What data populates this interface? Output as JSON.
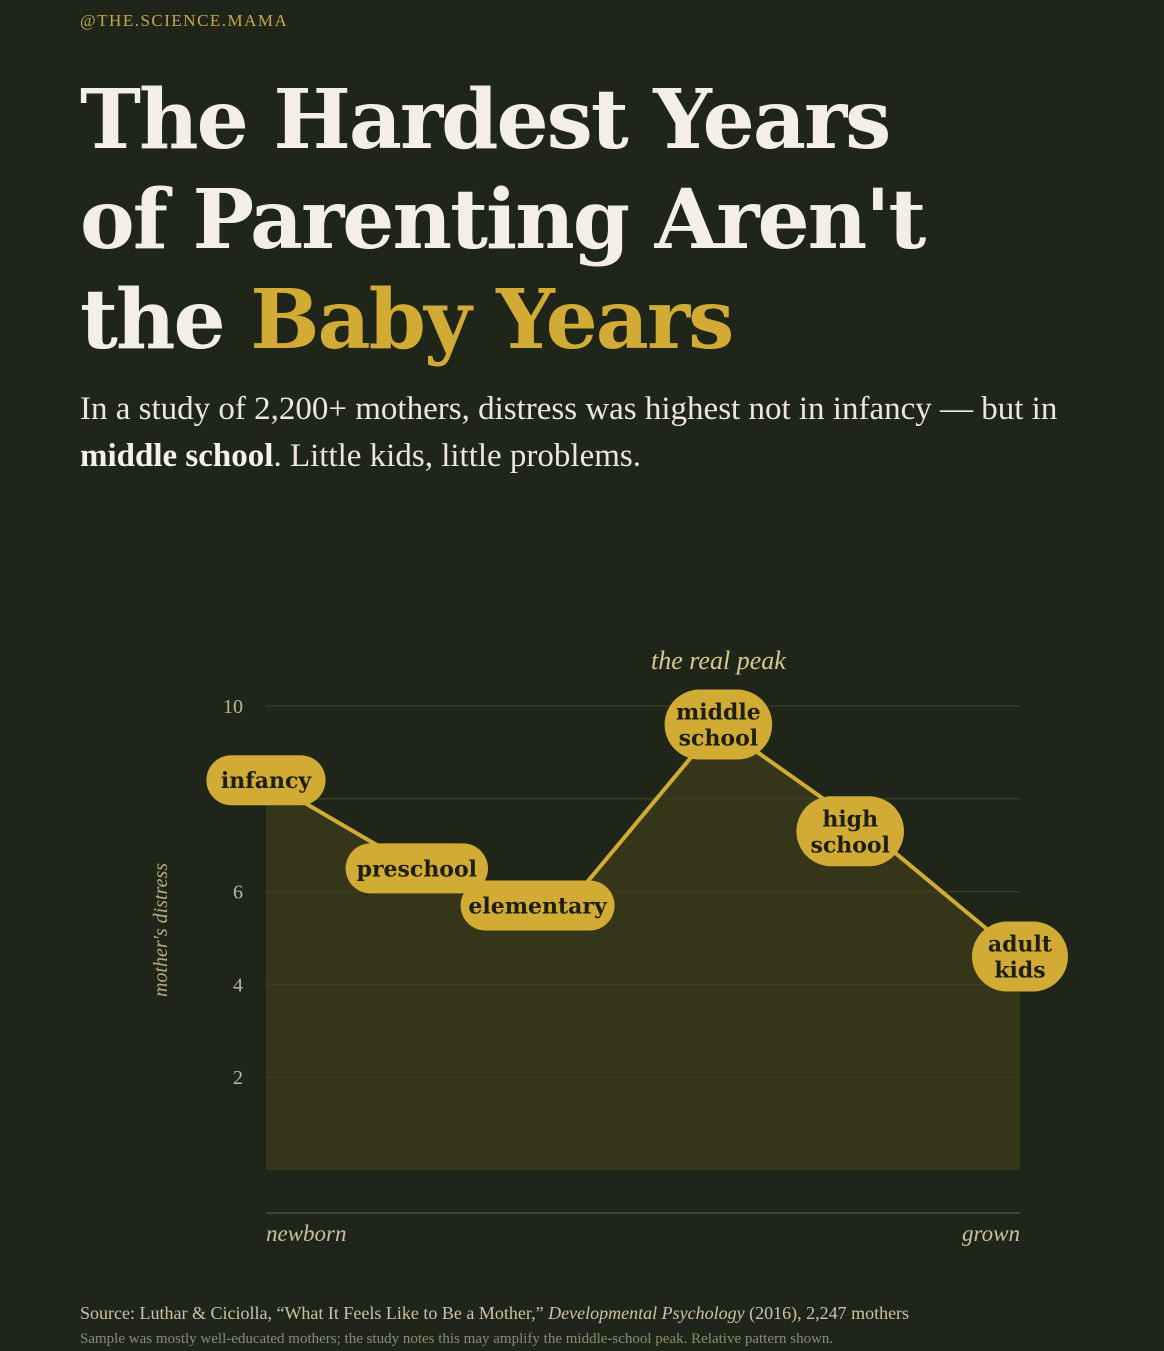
{
  "header": {
    "handle": "@THE.SCIENCE.MAMA",
    "title_line1": "The Hardest Years",
    "title_line2": "of Parenting Aren't",
    "title_line3_pre": "the ",
    "title_line3_accent": "Baby Years",
    "subtitle_pre": "In a study of 2,200+ mothers, distress was highest not in infancy — but in ",
    "subtitle_bold": "middle school",
    "subtitle_post": ". Little kids, little problems."
  },
  "colors": {
    "background": "#1f2619",
    "accent": "#d2ab35",
    "area_fill": "#3a3a1a",
    "label_text": "#1c1f12",
    "gridline": "#3f4425"
  },
  "chart_data": {
    "type": "area",
    "categories": [
      "infancy",
      "preschool",
      "elementary",
      "middle school",
      "high school",
      "adult kids"
    ],
    "category_labels": [
      [
        "infancy"
      ],
      [
        "preschool"
      ],
      [
        "elementary"
      ],
      [
        "middle",
        "school"
      ],
      [
        "high",
        "school"
      ],
      [
        "adult",
        "kids"
      ]
    ],
    "values": [
      8.4,
      6.5,
      5.7,
      9.6,
      7.3,
      4.6
    ],
    "ylabel": "mother's distress",
    "yticks": [
      2,
      4,
      6,
      10
    ],
    "ylim": [
      0,
      10
    ],
    "x_start_label": "newborn",
    "x_end_label": "grown",
    "annotation": "the real peak",
    "annotation_category": "middle school",
    "grid": true
  },
  "footer": {
    "source_pre": "Source: Luthar & Ciciolla, “What It Feels Like to Be a Mother,” ",
    "source_journal": "Developmental Psychology",
    "source_post": " (2016), 2,247 mothers",
    "note": "Sample was mostly well-educated mothers; the study notes this may amplify the middle-school peak. Relative pattern shown."
  }
}
